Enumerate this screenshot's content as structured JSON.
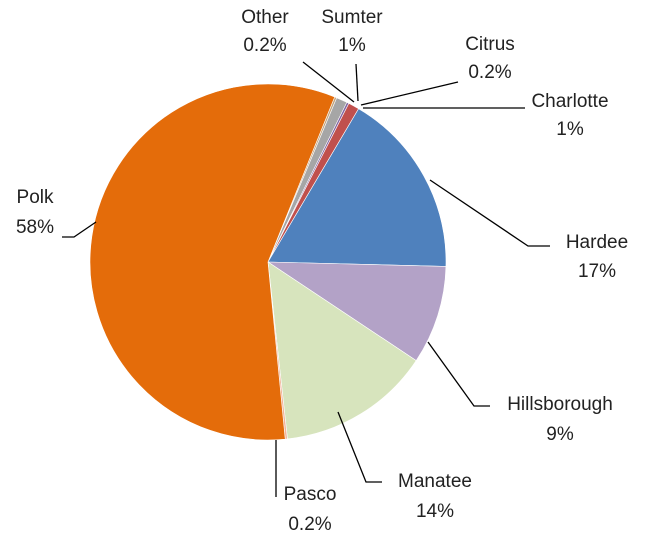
{
  "chart_data": {
    "type": "pie",
    "categories": [
      "Other",
      "Sumter",
      "Citrus",
      "Charlotte",
      "Hardee",
      "Hillsborough",
      "Manatee",
      "Pasco",
      "Polk"
    ],
    "values": [
      0.2,
      1,
      0.2,
      1,
      17,
      9,
      14,
      0.2,
      58
    ],
    "value_labels": [
      "0.2%",
      "1%",
      "0.2%",
      "1%",
      "17%",
      "9%",
      "14%",
      "0.2%",
      "58%"
    ],
    "colors": [
      "#c4a47c",
      "#a6a6a6",
      "#8064a2",
      "#c0504d",
      "#4f81bd",
      "#b3a2c7",
      "#d7e4bd",
      "#f2b49a",
      "#e46c0a"
    ]
  }
}
